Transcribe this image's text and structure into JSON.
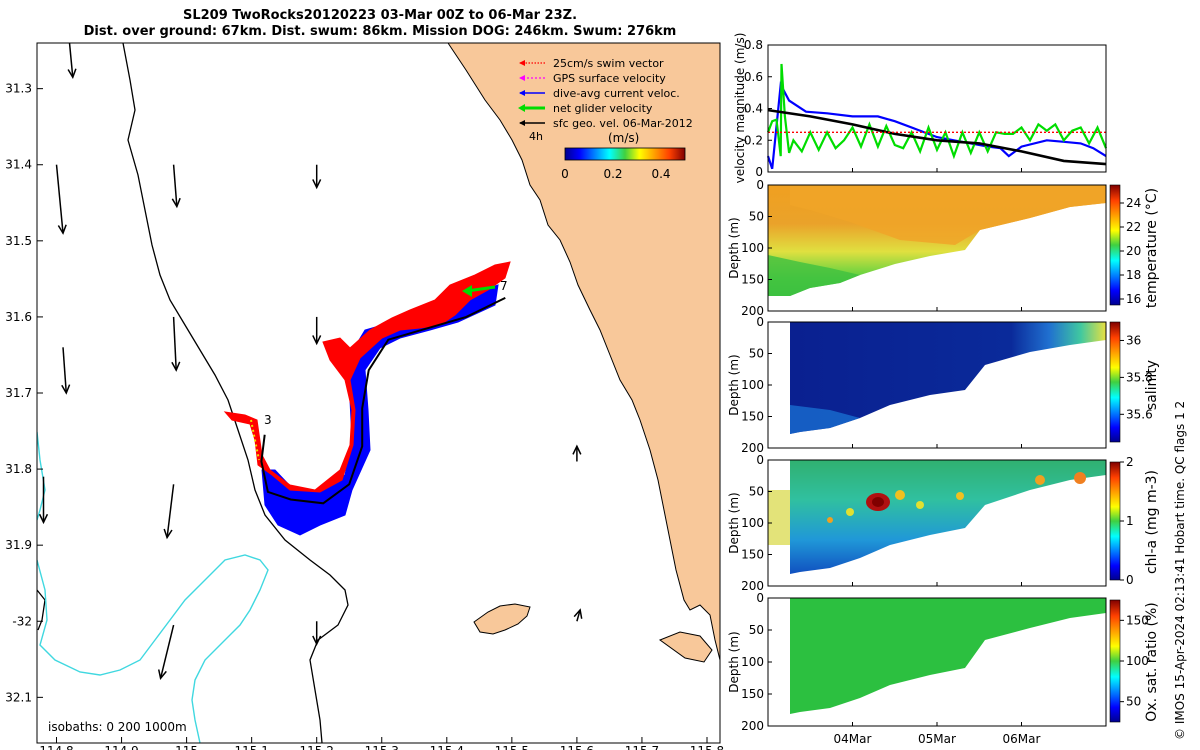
{
  "title": {
    "line1": "SL209 TwoRocks20120223 03-Mar 00Z to 06-Mar 23Z.",
    "line2": "Dist. over ground: 67km. Dist. swum: 86km. Mission DOG: 246km. Swum: 276km"
  },
  "colors": {
    "land": "#f8c89a",
    "coast": "#000000",
    "isobath_200": "#000000",
    "isobath_1000": "#40d8e0",
    "swim": "#ff0000",
    "gps": "#ff00ff",
    "dive_avg": "#0000ff",
    "net": "#00dd00",
    "sfc": "#000000"
  },
  "chart_data": [
    {
      "type": "map",
      "name": "glider track map",
      "xlim": [
        114.77,
        115.82
      ],
      "ylim": [
        -32.16,
        -31.24
      ],
      "x_ticks": [
        114.8,
        114.9,
        115,
        115.1,
        115.2,
        115.3,
        115.4,
        115.5,
        115.6,
        115.7,
        115.8
      ],
      "x_tick_labels": [
        "114.8",
        "114.9",
        "115",
        "115.1",
        "115.2",
        "115.3",
        "115.4",
        "115.5",
        "115.6",
        "115.7",
        "115.8"
      ],
      "y_ticks": [
        -31.3,
        -31.4,
        -31.5,
        -31.6,
        -31.7,
        -31.8,
        -31.9,
        -32,
        -32.1
      ],
      "y_tick_labels": [
        "31.3",
        "31.4",
        "31.5",
        "31.6",
        "31.7",
        "31.8",
        "31.9",
        "-32",
        "32.1"
      ],
      "legend": [
        "25cm/s swim vector",
        "GPS surface velocity",
        "dive-avg current veloc.",
        "net glider velocity",
        "sfc geo. vel. 06-Mar-2012"
      ],
      "legend_extra": "4h",
      "colorbar": {
        "label": "(m/s)",
        "ticks": [
          "0",
          "0.2",
          "0.4"
        ],
        "range": [
          0,
          0.5
        ]
      },
      "isobath_label": "isobaths: 0   200  1000m",
      "day_markers": [
        {
          "label": "3",
          "lon": 115.12,
          "lat": -31.755
        },
        {
          "label": "7",
          "lon": 115.49,
          "lat": -31.575
        }
      ],
      "track": [
        [
          115.12,
          -31.755
        ],
        [
          115.115,
          -31.79
        ],
        [
          115.125,
          -31.83
        ],
        [
          115.16,
          -31.84
        ],
        [
          115.21,
          -31.845
        ],
        [
          115.25,
          -31.82
        ],
        [
          115.27,
          -31.77
        ],
        [
          115.27,
          -31.72
        ],
        [
          115.28,
          -31.67
        ],
        [
          115.31,
          -31.63
        ],
        [
          115.37,
          -31.615
        ],
        [
          115.43,
          -31.6
        ],
        [
          115.49,
          -31.575
        ]
      ],
      "geo_vectors": [
        {
          "lon": 114.82,
          "lat": -31.24,
          "u": 0.005,
          "v": -0.045
        },
        {
          "lon": 114.8,
          "lat": -31.4,
          "u": 0.01,
          "v": -0.09
        },
        {
          "lon": 114.81,
          "lat": -31.64,
          "u": 0.005,
          "v": -0.06
        },
        {
          "lon": 114.78,
          "lat": -31.81,
          "u": 0.0,
          "v": -0.06
        },
        {
          "lon": 114.98,
          "lat": -31.4,
          "u": 0.005,
          "v": -0.055
        },
        {
          "lon": 114.98,
          "lat": -31.6,
          "u": 0.004,
          "v": -0.07
        },
        {
          "lon": 114.98,
          "lat": -31.82,
          "u": -0.01,
          "v": -0.07
        },
        {
          "lon": 114.98,
          "lat": -32.005,
          "u": -0.02,
          "v": -0.07
        },
        {
          "lon": 115.2,
          "lat": -31.4,
          "u": 0.0,
          "v": -0.03
        },
        {
          "lon": 115.2,
          "lat": -31.6,
          "u": 0.0,
          "v": -0.035
        },
        {
          "lon": 115.2,
          "lat": -32.0,
          "u": 0.0,
          "v": -0.03
        },
        {
          "lon": 115.6,
          "lat": -31.79,
          "u": 0.0,
          "v": 0.02
        },
        {
          "lon": 115.6,
          "lat": -32.0,
          "u": 0.005,
          "v": 0.015
        }
      ]
    },
    {
      "type": "line",
      "name": "velocity magnitude",
      "ylabel": "velocity magnitude (m/s)",
      "ylim": [
        0,
        0.8
      ],
      "y_ticks": [
        0,
        0.2,
        0.4,
        0.6,
        0.8
      ],
      "x_range_days": [
        0,
        4
      ],
      "series": [
        {
          "name": "dive-avg current veloc.",
          "color": "#0000ff",
          "x": [
            0,
            0.05,
            0.15,
            0.25,
            0.45,
            0.7,
            1.0,
            1.3,
            1.5,
            1.75,
            2.0,
            2.2,
            2.4,
            2.6,
            2.75,
            2.85,
            3.0,
            3.3,
            3.5,
            3.7,
            3.85,
            4.0
          ],
          "y": [
            0.1,
            0.02,
            0.55,
            0.45,
            0.38,
            0.37,
            0.35,
            0.35,
            0.32,
            0.27,
            0.22,
            0.2,
            0.18,
            0.16,
            0.15,
            0.1,
            0.16,
            0.2,
            0.19,
            0.18,
            0.15,
            0.1
          ]
        },
        {
          "name": "net glider velocity",
          "color": "#00dd00",
          "x": [
            0,
            0.05,
            0.1,
            0.15,
            0.16,
            0.2,
            0.25,
            0.3,
            0.4,
            0.5,
            0.6,
            0.7,
            0.8,
            0.9,
            1.0,
            1.1,
            1.2,
            1.3,
            1.4,
            1.5,
            1.6,
            1.7,
            1.8,
            1.9,
            2.0,
            2.1,
            2.2,
            2.3,
            2.4,
            2.5,
            2.6,
            2.7,
            2.8,
            2.9,
            3.0,
            3.1,
            3.2,
            3.3,
            3.4,
            3.5,
            3.6,
            3.7,
            3.8,
            3.9,
            4.0
          ],
          "y": [
            0.25,
            0.32,
            0.33,
            0.1,
            0.68,
            0.35,
            0.12,
            0.2,
            0.13,
            0.25,
            0.14,
            0.25,
            0.15,
            0.2,
            0.28,
            0.16,
            0.3,
            0.16,
            0.29,
            0.17,
            0.15,
            0.25,
            0.13,
            0.28,
            0.14,
            0.25,
            0.1,
            0.25,
            0.12,
            0.25,
            0.13,
            0.25,
            0.24,
            0.24,
            0.28,
            0.2,
            0.3,
            0.26,
            0.3,
            0.2,
            0.26,
            0.28,
            0.18,
            0.28,
            0.15
          ]
        },
        {
          "name": "sfc geo. vel.",
          "color": "#000000",
          "x": [
            0,
            0.5,
            1.0,
            1.5,
            2.0,
            2.5,
            3.0,
            3.5,
            4.0
          ],
          "y": [
            0.39,
            0.35,
            0.3,
            0.24,
            0.2,
            0.18,
            0.13,
            0.07,
            0.05
          ]
        },
        {
          "name": "25cm/s swim vector",
          "color": "#ff0000",
          "x": [
            0,
            4
          ],
          "y": [
            0.25,
            0.25
          ]
        }
      ]
    },
    {
      "type": "heatmap",
      "name": "temperature section",
      "ylabel": "Depth (m)",
      "y_ticks": [
        0,
        50,
        100,
        150,
        200
      ],
      "ylim": [
        0,
        200
      ],
      "colorbar_label": "temperature (°C)",
      "colorbar_ticks": [
        "24",
        "22",
        "20",
        "18",
        "16"
      ],
      "crange": [
        15.5,
        25.5
      ],
      "bottom_depth_profile_days": [
        0.1,
        0.2,
        1.0,
        2.0,
        3.0,
        3.5,
        4.0
      ],
      "bottom_depth_m": [
        160,
        175,
        150,
        110,
        60,
        25,
        20
      ]
    },
    {
      "type": "heatmap",
      "name": "salinity section",
      "ylabel": "Depth (m)",
      "y_ticks": [
        0,
        50,
        100,
        150,
        200
      ],
      "ylim": [
        0,
        200
      ],
      "colorbar_label": "salinity",
      "colorbar_ticks": [
        "36",
        "35.8",
        "35.6"
      ],
      "crange": [
        35.45,
        36.1
      ]
    },
    {
      "type": "heatmap",
      "name": "chlorophyll section",
      "ylabel": "Depth (m)",
      "y_ticks": [
        0,
        50,
        100,
        150,
        200
      ],
      "ylim": [
        0,
        200
      ],
      "colorbar_label": "chl-a (mg m-3)",
      "colorbar_ticks": [
        "2",
        "1",
        "0"
      ],
      "crange": [
        0,
        2
      ]
    },
    {
      "type": "heatmap",
      "name": "oxygen saturation section",
      "ylabel": "Depth (m)",
      "y_ticks": [
        0,
        50,
        100,
        150,
        200
      ],
      "ylim": [
        0,
        200
      ],
      "colorbar_label": "Ox. sat. ratio (%)",
      "colorbar_ticks": [
        "150",
        "100",
        "50"
      ],
      "crange": [
        25,
        175
      ],
      "x_tick_labels": [
        "04Mar",
        "05Mar",
        "06Mar"
      ]
    }
  ],
  "footer": "© IMOS 15-Apr-2024 02:13:41 Hobart time. QC flags 1  2"
}
